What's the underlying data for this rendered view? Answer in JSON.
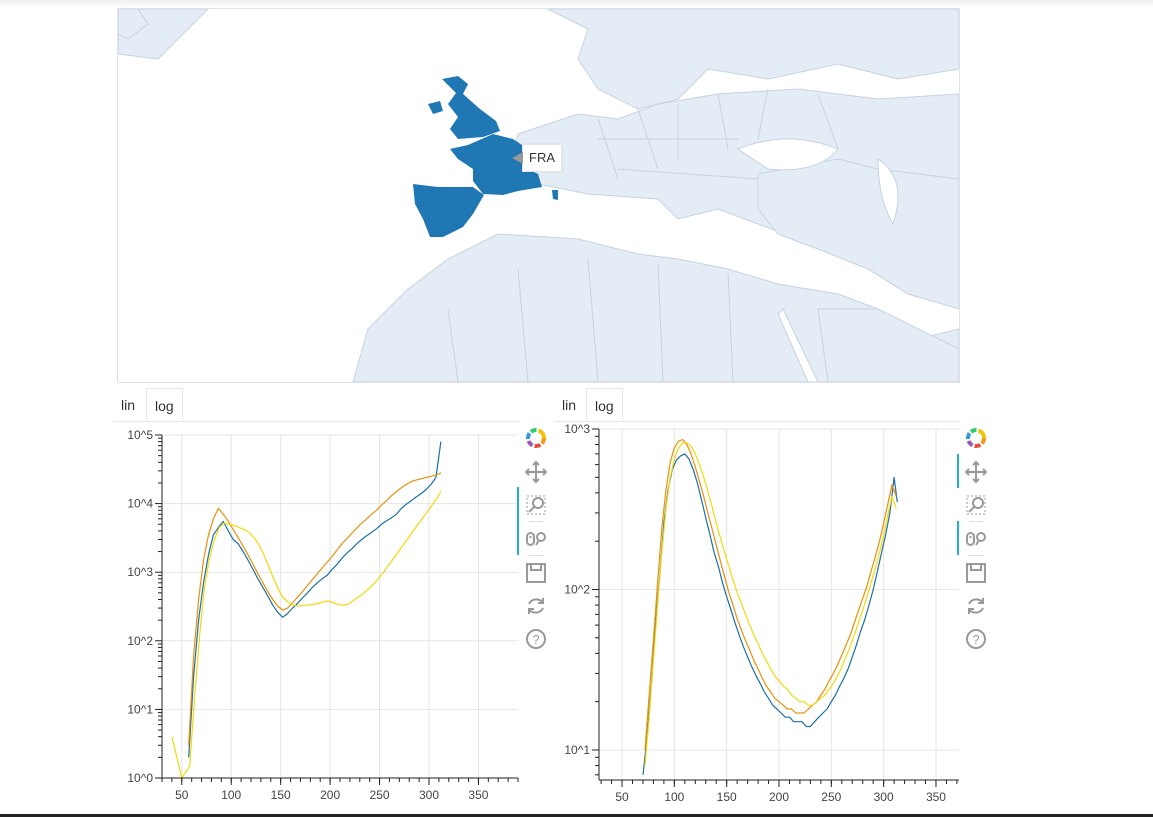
{
  "map": {
    "hover_label": "FRA",
    "colors": {
      "land": "#e4ecf5",
      "border": "#c7d3e1",
      "sea": "#ffffff",
      "highlight": "#1f77b4"
    }
  },
  "left_panel": {
    "tabs": [
      {
        "label": "lin",
        "active": false
      },
      {
        "label": "log",
        "active": true
      }
    ],
    "toolbar": [
      "bokeh-logo-icon",
      "pan-icon",
      "box-zoom-icon",
      "wheel-zoom-icon",
      "save-icon",
      "reset-icon",
      "help-icon"
    ]
  },
  "right_panel": {
    "tabs": [
      {
        "label": "lin",
        "active": false
      },
      {
        "label": "log",
        "active": true
      }
    ],
    "toolbar": [
      "bokeh-logo-icon",
      "pan-icon",
      "box-zoom-icon",
      "wheel-zoom-icon",
      "save-icon",
      "reset-icon",
      "help-icon"
    ]
  },
  "chart_data": [
    {
      "type": "line",
      "y_scale": "log",
      "xlim": [
        30,
        390
      ],
      "ylim": [
        1,
        100000
      ],
      "x_ticks": [
        50,
        100,
        150,
        200,
        250,
        300,
        350
      ],
      "y_ticks": [
        {
          "value": 1,
          "label": "10^0"
        },
        {
          "value": 10,
          "label": "10^1"
        },
        {
          "value": 100,
          "label": "10^2"
        },
        {
          "value": 1000,
          "label": "10^3"
        },
        {
          "value": 10000,
          "label": "10^4"
        },
        {
          "value": 100000,
          "label": "10^5"
        }
      ],
      "grid": true,
      "legend": "none",
      "series": [
        {
          "color": "#1a6fa5",
          "x": [
            57,
            62,
            67,
            72,
            77,
            82,
            87,
            92,
            97,
            102,
            107,
            112,
            117,
            122,
            127,
            132,
            137,
            142,
            147,
            152,
            157,
            162,
            167,
            172,
            177,
            182,
            187,
            192,
            197,
            202,
            207,
            212,
            217,
            222,
            227,
            232,
            237,
            242,
            247,
            252,
            257,
            262,
            267,
            272,
            277,
            282,
            287,
            292,
            297,
            302,
            307,
            312
          ],
          "y": [
            2,
            30,
            200,
            700,
            1800,
            3500,
            4500,
            5500,
            4000,
            3000,
            2600,
            2000,
            1500,
            1100,
            800,
            600,
            450,
            330,
            260,
            220,
            250,
            300,
            350,
            420,
            500,
            600,
            700,
            800,
            900,
            1100,
            1300,
            1600,
            1900,
            2200,
            2600,
            3000,
            3400,
            3800,
            4300,
            5000,
            5600,
            6200,
            7000,
            8500,
            9800,
            11000,
            12500,
            14000,
            16000,
            19000,
            24000,
            80000
          ]
        },
        {
          "color": "#e8900d",
          "x": [
            57,
            62,
            67,
            72,
            77,
            82,
            87,
            92,
            97,
            102,
            107,
            112,
            117,
            122,
            127,
            132,
            137,
            142,
            147,
            152,
            157,
            162,
            167,
            172,
            177,
            182,
            187,
            192,
            197,
            202,
            207,
            212,
            217,
            222,
            227,
            232,
            237,
            242,
            247,
            252,
            257,
            262,
            267,
            272,
            277,
            282,
            287,
            292,
            297,
            302,
            307,
            312
          ],
          "y": [
            3,
            60,
            400,
            1500,
            3500,
            6000,
            8500,
            7000,
            5500,
            4200,
            3200,
            2400,
            1800,
            1300,
            950,
            700,
            520,
            400,
            320,
            280,
            300,
            360,
            430,
            520,
            640,
            780,
            950,
            1150,
            1400,
            1700,
            2100,
            2600,
            3100,
            3700,
            4400,
            5200,
            6000,
            7000,
            8000,
            9500,
            11000,
            13000,
            15000,
            17000,
            19000,
            21000,
            22000,
            23000,
            24000,
            25000,
            26000,
            28000
          ]
        },
        {
          "color": "#f2d90e",
          "x": [
            40,
            50,
            58,
            63,
            68,
            73,
            78,
            83,
            88,
            93,
            98,
            103,
            108,
            113,
            118,
            123,
            128,
            133,
            138,
            143,
            148,
            153,
            158,
            163,
            168,
            173,
            178,
            183,
            188,
            193,
            198,
            203,
            208,
            213,
            218,
            223,
            228,
            233,
            238,
            243,
            248,
            253,
            258,
            263,
            268,
            273,
            278,
            283,
            288,
            293,
            298,
            303,
            308,
            312
          ],
          "y": [
            4,
            1,
            1.5,
            15,
            120,
            600,
            1600,
            3000,
            4500,
            5200,
            5000,
            4800,
            4500,
            4200,
            3800,
            3200,
            2500,
            1800,
            1200,
            800,
            550,
            420,
            360,
            330,
            320,
            330,
            330,
            340,
            350,
            370,
            380,
            360,
            340,
            330,
            340,
            380,
            430,
            480,
            560,
            650,
            780,
            950,
            1200,
            1500,
            1900,
            2400,
            3000,
            3800,
            4800,
            6000,
            7500,
            9500,
            12000,
            15000
          ]
        }
      ]
    },
    {
      "type": "line",
      "y_scale": "log",
      "xlim": [
        28,
        372
      ],
      "ylim": [
        6.5,
        1000
      ],
      "x_ticks": [
        50,
        100,
        150,
        200,
        250,
        300,
        350
      ],
      "y_ticks": [
        {
          "value": 10,
          "label": "10^1"
        },
        {
          "value": 100,
          "label": "10^2"
        },
        {
          "value": 1000,
          "label": "10^3"
        }
      ],
      "grid": true,
      "legend": "none",
      "series": [
        {
          "color": "#1a6fa5",
          "x": [
            70,
            74,
            78,
            82,
            86,
            90,
            94,
            98,
            102,
            106,
            110,
            114,
            118,
            122,
            126,
            130,
            134,
            138,
            142,
            146,
            150,
            154,
            158,
            162,
            166,
            170,
            174,
            178,
            182,
            186,
            190,
            194,
            198,
            202,
            206,
            210,
            214,
            218,
            222,
            226,
            230,
            234,
            238,
            242,
            246,
            250,
            254,
            258,
            262,
            266,
            270,
            274,
            278,
            282,
            286,
            290,
            294,
            298,
            302,
            306,
            310,
            313
          ],
          "y": [
            7,
            12,
            25,
            60,
            120,
            260,
            420,
            560,
            640,
            680,
            700,
            650,
            560,
            460,
            360,
            280,
            220,
            170,
            140,
            110,
            90,
            75,
            62,
            52,
            44,
            38,
            33,
            29,
            26,
            23,
            21,
            19,
            18,
            17,
            16,
            16,
            15,
            15,
            15,
            14,
            14,
            15,
            16,
            17,
            18,
            20,
            22,
            25,
            28,
            32,
            38,
            45,
            55,
            65,
            80,
            100,
            130,
            170,
            220,
            300,
            500,
            350
          ]
        },
        {
          "color": "#e8900d",
          "x": [
            72,
            76,
            80,
            84,
            88,
            92,
            96,
            100,
            104,
            108,
            112,
            116,
            120,
            124,
            128,
            132,
            136,
            140,
            144,
            148,
            152,
            156,
            160,
            164,
            168,
            172,
            176,
            180,
            184,
            188,
            192,
            196,
            200,
            204,
            208,
            212,
            216,
            220,
            224,
            228,
            232,
            236,
            240,
            244,
            248,
            252,
            256,
            260,
            264,
            268,
            272,
            276,
            280,
            284,
            288,
            292,
            296,
            300,
            304,
            308,
            312
          ],
          "y": [
            10,
            22,
            48,
            110,
            240,
            420,
            620,
            760,
            840,
            860,
            800,
            700,
            580,
            470,
            380,
            300,
            240,
            190,
            150,
            120,
            96,
            80,
            66,
            56,
            48,
            42,
            36,
            32,
            28,
            25,
            23,
            21,
            20,
            19,
            18,
            18,
            17,
            17,
            17,
            18,
            19,
            20,
            22,
            24,
            27,
            30,
            34,
            39,
            45,
            52,
            62,
            74,
            88,
            105,
            130,
            160,
            200,
            260,
            340,
            450,
            380
          ]
        },
        {
          "color": "#f2d90e",
          "x": [
            72,
            76,
            80,
            84,
            88,
            92,
            96,
            100,
            104,
            108,
            112,
            116,
            120,
            124,
            128,
            132,
            136,
            140,
            144,
            148,
            152,
            156,
            160,
            164,
            168,
            172,
            176,
            180,
            184,
            188,
            192,
            196,
            200,
            204,
            208,
            212,
            216,
            220,
            224,
            228,
            232,
            236,
            240,
            244,
            248,
            252,
            256,
            260,
            264,
            268,
            272,
            276,
            280,
            284,
            288,
            292,
            296,
            300,
            304,
            308,
            312
          ],
          "y": [
            8,
            16,
            36,
            80,
            170,
            320,
            500,
            650,
            760,
            820,
            820,
            780,
            700,
            600,
            500,
            410,
            330,
            260,
            210,
            170,
            140,
            115,
            96,
            82,
            70,
            60,
            52,
            46,
            40,
            36,
            32,
            29,
            27,
            25,
            24,
            22,
            21,
            20,
            20,
            19,
            19,
            20,
            21,
            22,
            24,
            26,
            29,
            33,
            38,
            44,
            52,
            62,
            74,
            90,
            110,
            135,
            170,
            220,
            290,
            380,
            320
          ]
        }
      ]
    }
  ]
}
